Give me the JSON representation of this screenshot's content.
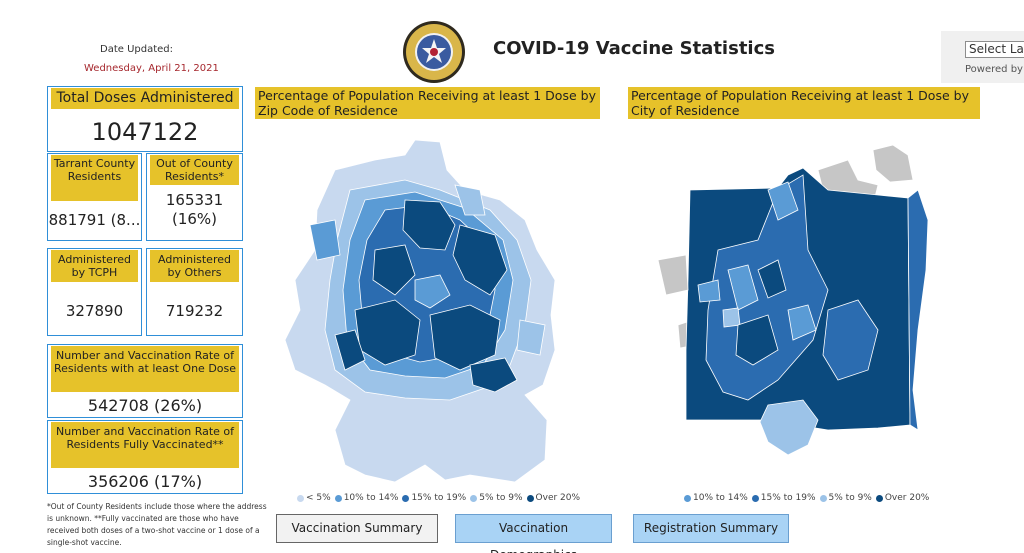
{
  "header": {
    "date_label": "Date Updated:",
    "date_value": "Wednesday, April 21, 2021",
    "title": "COVID-19 Vaccine Statistics",
    "language_select": "Select La",
    "powered_by": "Powered by"
  },
  "cards": {
    "total": {
      "label": "Total Doses Administered",
      "value": "1047122"
    },
    "tarrant": {
      "label": "Tarrant County Residents",
      "value": "881791 (8..."
    },
    "out_of_county": {
      "label": "Out of County Residents*",
      "value": "165331 (16%)"
    },
    "tcph": {
      "label": "Administered by TCPH",
      "value": "327890"
    },
    "others": {
      "label": "Administered by Others",
      "value": "719232"
    },
    "one_dose": {
      "label": "Number and Vaccination Rate of Residents with at least One Dose",
      "value": "542708 (26%)"
    },
    "fully": {
      "label": "Number and Vaccination Rate of Residents Fully Vaccinated**",
      "value": "356206 (17%)"
    }
  },
  "footnote": "*Out of County Residents include those where the address is unknown. **Fully vaccinated are those who have received both doses of a two-shot vaccine or 1 dose of a single-shot vaccine.",
  "maps": {
    "zip": {
      "title": "Percentage of Population Receiving at least 1 Dose by Zip Code of Residence",
      "legend": [
        {
          "label": "< 5%",
          "color": "#c8d9ef"
        },
        {
          "label": "10% to 14%",
          "color": "#5a9bd5"
        },
        {
          "label": "15% to 19%",
          "color": "#2b6cb0"
        },
        {
          "label": "5% to 9%",
          "color": "#9cc3e8"
        },
        {
          "label": "Over 20%",
          "color": "#0b4a7e"
        }
      ]
    },
    "city": {
      "title": "Percentage of Population Receiving at least 1 Dose by City of Residence",
      "legend": [
        {
          "label": "10% to 14%",
          "color": "#5a9bd5"
        },
        {
          "label": "15% to 19%",
          "color": "#2b6cb0"
        },
        {
          "label": "5% to 9%",
          "color": "#9cc3e8"
        },
        {
          "label": "Over 20%",
          "color": "#0b4a7e"
        }
      ]
    }
  },
  "buttons": {
    "summary": "Vaccination Summary",
    "demographics": "Vaccination Demographics",
    "registration": "Registration Summary"
  }
}
